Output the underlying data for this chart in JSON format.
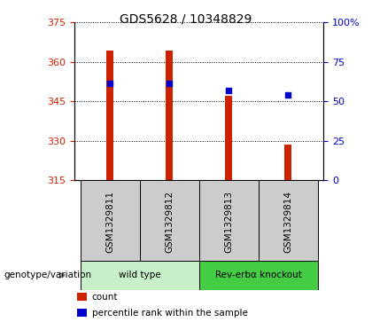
{
  "title": "GDS5628 / 10348829",
  "samples": [
    "GSM1329811",
    "GSM1329812",
    "GSM1329813",
    "GSM1329814"
  ],
  "bar_values": [
    364.5,
    364.5,
    347.0,
    328.5
  ],
  "percentile_values": [
    352.0,
    352.0,
    349.0,
    347.5
  ],
  "bar_base": 315,
  "ylim_left": [
    315,
    375
  ],
  "ylim_right": [
    0,
    100
  ],
  "yticks_left": [
    315,
    330,
    345,
    360,
    375
  ],
  "yticks_right": [
    0,
    25,
    50,
    75,
    100
  ],
  "ytick_labels_right": [
    "0",
    "25",
    "50",
    "75",
    "100%"
  ],
  "bar_color": "#cc2200",
  "dot_color": "#0000cc",
  "groups": [
    {
      "label": "wild type",
      "indices": [
        0,
        1
      ],
      "color": "#c8f0c8"
    },
    {
      "label": "Rev-erbα knockout",
      "indices": [
        2,
        3
      ],
      "color": "#44cc44"
    }
  ],
  "group_label": "genotype/variation",
  "legend_items": [
    {
      "color": "#cc2200",
      "label": "count"
    },
    {
      "color": "#0000cc",
      "label": "percentile rank within the sample"
    }
  ],
  "left_axis_color": "#cc2200",
  "right_axis_color": "#0000cc",
  "bar_width": 0.12,
  "grid_color": "#000000",
  "sample_box_color": "#cccccc"
}
